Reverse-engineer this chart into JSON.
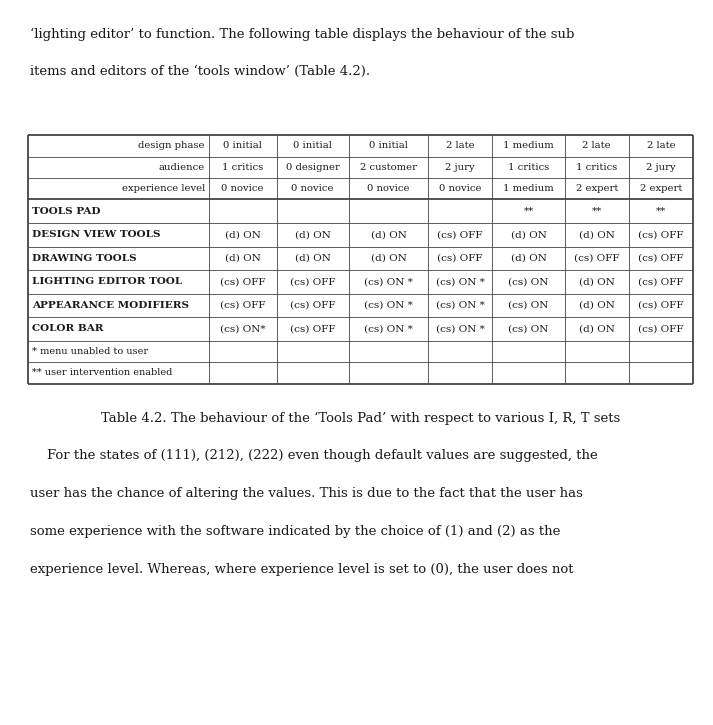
{
  "intro_text_line1": "‘lighting editor’ to function. The following table displays the behaviour of the sub",
  "intro_text_line2": "items and editors of the ‘tools window’ (Table 4.2).",
  "caption": "Table 4.2. The behaviour of the ‘Tools Pad’ with respect to various I, R, T sets",
  "footer_text_line1": "    For the states of (111), (212), (222) even though default values are suggested, the",
  "footer_text_line2": "user has the chance of altering the values. This is due to the fact that the user has",
  "footer_text_line3": "some experience with the software indicated by the choice of (1) and (2) as the",
  "footer_text_line4": "experience level. Whereas, where experience level is set to (0), the user does not",
  "header_row1": [
    "design phase",
    "0 initial",
    "0 initial",
    "0 initial",
    "2 late",
    "1 medium",
    "2 late",
    "2 late"
  ],
  "header_row2": [
    "audience",
    "1 critics",
    "0 designer",
    "2 customer",
    "2 jury",
    "1 critics",
    "1 critics",
    "2 jury"
  ],
  "header_row3": [
    "experience level",
    "0 novice",
    "0 novice",
    "0 novice",
    "0 novice",
    "1 medium",
    "2 expert",
    "2 expert"
  ],
  "data_rows": [
    [
      "TOOLS PAD",
      "",
      "",
      "",
      "",
      "**",
      "**",
      "**"
    ],
    [
      "DESIGN VIEW TOOLS",
      "(d) ON",
      "(d) ON",
      "(d) ON",
      "(cs) OFF",
      "(d) ON",
      "(d) ON",
      "(cs) OFF"
    ],
    [
      "DRAWING TOOLS",
      "(d) ON",
      "(d) ON",
      "(d) ON",
      "(cs) OFF",
      "(d) ON",
      "(cs) OFF",
      "(cs) OFF"
    ],
    [
      "LIGHTING EDITOR TOOL",
      "(cs) OFF",
      "(cs) OFF",
      "(cs) ON *",
      "(cs) ON *",
      "(cs) ON",
      "(d) ON",
      "(cs) OFF"
    ],
    [
      "APPEARANCE MODIFIERS",
      "(cs) OFF",
      "(cs) OFF",
      "(cs) ON *",
      "(cs) ON *",
      "(cs) ON",
      "(d) ON",
      "(cs) OFF"
    ],
    [
      "COLOR BAR",
      "(cs) ON*",
      "(cs) OFF",
      "(cs) ON *",
      "(cs) ON *",
      "(cs) ON",
      "(d) ON",
      "(cs) OFF"
    ]
  ],
  "footnote_rows": [
    [
      "* menu unabled to user",
      "",
      "",
      "",
      "",
      "",
      "",
      ""
    ],
    [
      "** user intervention enabled",
      "",
      "",
      "",
      "",
      "",
      "",
      ""
    ]
  ],
  "col_widths_pts": [
    155,
    58,
    62,
    68,
    55,
    62,
    55,
    55
  ],
  "bg_color": "#ffffff",
  "text_color": "#1a1a1a",
  "border_color": "#444444",
  "header_align": [
    "right",
    "center",
    "center",
    "center",
    "center",
    "center",
    "center",
    "center"
  ],
  "data_align": [
    "left",
    "center",
    "center",
    "center",
    "center",
    "center",
    "center",
    "center"
  ],
  "fontsize_table_header": 7.2,
  "fontsize_table_data": 7.5,
  "fontsize_table_data_bold": 7.5,
  "fontsize_footnote": 7.0,
  "fontsize_body": 9.5,
  "fontsize_caption": 9.5
}
